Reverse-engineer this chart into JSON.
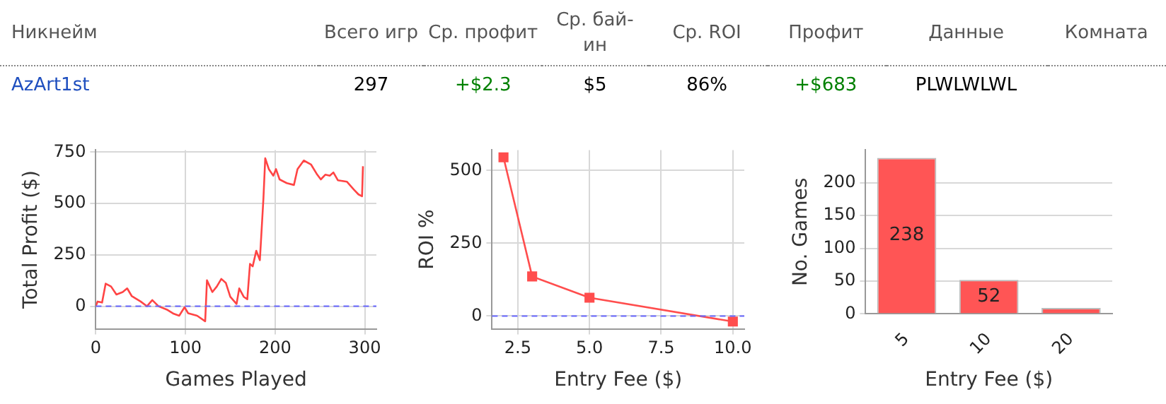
{
  "chart_data": [
    {
      "type": "other",
      "categories": [
        "Никнейм",
        "Всего игр",
        "Ср. профит",
        "Ср. бай-ин",
        "Ср. ROI",
        "Профит",
        "Данные",
        "Комната"
      ],
      "value_labels": [
        "AzArt1st",
        "297",
        "+$2.3",
        "$5",
        "86%",
        "+$683",
        "PLWLWLWL",
        null
      ],
      "colors": [
        "#1f4fbf",
        "#000000",
        "#008000",
        "#000000",
        "#000000",
        "#008000",
        "#000000",
        "#000000"
      ]
    },
    {
      "type": "line",
      "xlabel": "Games Played",
      "ylabel": "Total Profit ($)",
      "color": "#ff4444",
      "x": [
        0,
        2,
        7,
        11,
        17,
        23,
        30,
        35,
        40,
        50,
        57,
        63,
        70,
        80,
        87,
        93,
        99,
        103,
        113,
        122,
        124,
        130,
        135,
        140,
        145,
        150,
        157,
        160,
        165,
        169,
        172,
        175,
        179,
        183,
        187,
        189,
        193,
        198,
        201,
        205,
        213,
        221,
        225,
        232,
        240,
        247,
        251,
        256,
        261,
        265,
        270,
        280,
        288,
        293,
        297,
        298
      ],
      "values": [
        0,
        23,
        18,
        110,
        96,
        57,
        69,
        87,
        50,
        23,
        0,
        30,
        0,
        -18,
        -37,
        -46,
        -5,
        -34,
        -46,
        -73,
        126,
        69,
        96,
        133,
        114,
        46,
        11,
        87,
        46,
        34,
        206,
        194,
        270,
        224,
        526,
        720,
        667,
        635,
        667,
        617,
        599,
        590,
        667,
        709,
        690,
        640,
        617,
        640,
        635,
        651,
        613,
        606,
        567,
        544,
        535,
        681
      ],
      "xlim": [
        0,
        313
      ],
      "xticks": [
        0,
        100,
        200,
        300
      ],
      "ylim": [
        -110,
        760
      ],
      "yticks": [
        0,
        250,
        500,
        750
      ],
      "grid": true,
      "marker": "none",
      "ref_lines": [
        {
          "axis": "y",
          "value": 0,
          "color": "#6666ff",
          "line_style": "dashed"
        }
      ]
    },
    {
      "type": "line",
      "xlabel": "Entry Fee ($)",
      "ylabel": "ROI %",
      "color": "#ff4d4d",
      "x": [
        2,
        3,
        5,
        10
      ],
      "values": [
        545,
        136,
        63,
        -19
      ],
      "xlim": [
        1.6,
        10.4
      ],
      "xticks": [
        {
          "value": 2.5,
          "label": "2.5"
        },
        {
          "value": 5,
          "label": "5.0"
        },
        {
          "value": 7.5,
          "label": "7.5"
        },
        {
          "value": 10,
          "label": "10.0"
        }
      ],
      "ylim": [
        -44,
        570
      ],
      "yticks": [
        0,
        250,
        500
      ],
      "grid": true,
      "marker": "square",
      "ref_lines": [
        {
          "axis": "y",
          "value": 0,
          "color": "#6666ff",
          "line_style": "dashed"
        }
      ]
    },
    {
      "type": "bar",
      "xlabel": "Entry Fee ($)",
      "ylabel": "No. Games",
      "color": "#ff5555",
      "categories": [
        "5",
        "10",
        "20"
      ],
      "values": [
        238,
        52,
        9
      ],
      "value_labels": [
        "238",
        "52",
        null
      ],
      "ylim": [
        0,
        250
      ],
      "yticks": [
        0,
        50,
        100,
        150,
        200
      ],
      "grid": "y"
    }
  ]
}
